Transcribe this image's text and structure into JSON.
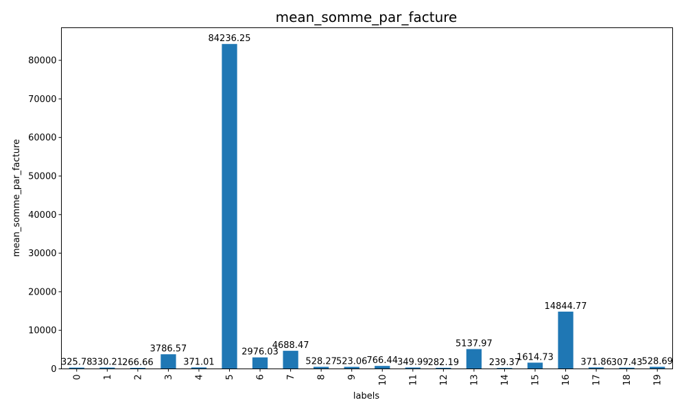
{
  "chart_data": {
    "type": "bar",
    "title": "mean_somme_par_facture",
    "xlabel": "labels",
    "ylabel": "mean_somme_par_facture",
    "categories": [
      "0",
      "1",
      "2",
      "3",
      "4",
      "5",
      "6",
      "7",
      "8",
      "9",
      "10",
      "11",
      "12",
      "13",
      "14",
      "15",
      "16",
      "17",
      "18",
      "19"
    ],
    "values": [
      325.78,
      330.21,
      266.66,
      3786.57,
      371.01,
      84236.25,
      2976.03,
      4688.47,
      528.27,
      523.06,
      766.44,
      349.99,
      282.19,
      5137.97,
      239.37,
      1614.73,
      14844.77,
      371.86,
      307.43,
      528.69
    ],
    "data_labels": [
      "325.78",
      "330.21",
      "266.66",
      "3786.57",
      "371.01",
      "84236.25",
      "2976.03",
      "4688.47",
      "528.27",
      "523.06",
      "766.44",
      "349.99",
      "282.19",
      "5137.97",
      "239.37",
      "1614.73",
      "14844.77",
      "371.86",
      "307.43",
      "528.69"
    ],
    "yticks": [
      0,
      10000,
      20000,
      30000,
      40000,
      50000,
      60000,
      70000,
      80000
    ],
    "ylim": [
      0,
      88448.06
    ],
    "grid": false,
    "bar_color": "#1f77b4"
  }
}
